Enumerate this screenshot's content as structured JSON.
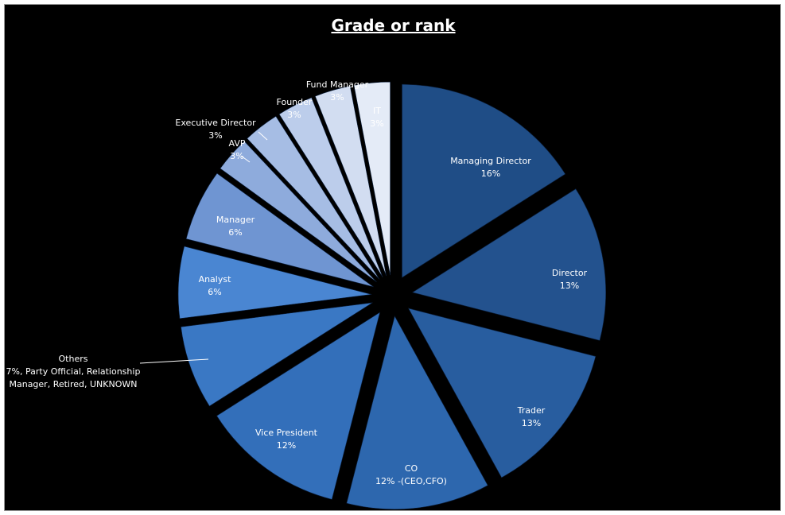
{
  "chart_data": {
    "type": "pie",
    "title": "Grade or rank",
    "slices": [
      {
        "name": "Managing Director",
        "value_label": "16%",
        "value": 16,
        "color": "#1f4d86"
      },
      {
        "name": "Director",
        "value_label": "13%",
        "value": 13,
        "color": "#23528e"
      },
      {
        "name": "Trader",
        "value_label": "13%",
        "value": 13,
        "color": "#285d9f"
      },
      {
        "name": "CO",
        "value_label": "12% -(CEO,CFO)",
        "value": 12,
        "color": "#2d67ae"
      },
      {
        "name": "Vice President",
        "value_label": "12%",
        "value": 12,
        "color": "#336fba"
      },
      {
        "name": "Others",
        "value_label": "7%, Party Official, Relationship Manager, Retired, UNKNOWN",
        "value": 7,
        "color": "#3a78c4"
      },
      {
        "name": "Analyst",
        "value_label": "6%",
        "value": 6,
        "color": "#4a86d2"
      },
      {
        "name": "Manager",
        "value_label": "6%",
        "value": 6,
        "color": "#6f95d2"
      },
      {
        "name": "AVP",
        "value_label": "3%",
        "value": 3,
        "color": "#8eabdc"
      },
      {
        "name": "Executive Director",
        "value_label": "3%",
        "value": 3,
        "color": "#a6bde4"
      },
      {
        "name": "Founder",
        "value_label": "3%",
        "value": 3,
        "color": "#bccdeb"
      },
      {
        "name": "Fund Manager",
        "value_label": "3%",
        "value": 3,
        "color": "#d2ddf1"
      },
      {
        "name": "IT",
        "value_label": "3%",
        "value": 3,
        "color": "#e4ebf7"
      }
    ],
    "legend": "none",
    "data_labels": "name and percent"
  }
}
